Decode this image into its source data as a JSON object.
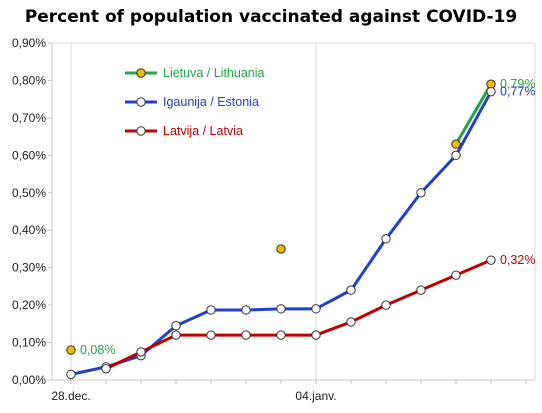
{
  "chart_data": {
    "type": "line",
    "title": "Percent of population vaccinated against COVID-19",
    "xlabel": "",
    "ylabel": "",
    "ylim": [
      0,
      0.9
    ],
    "y_ticks": [
      "0,00%",
      "0,10%",
      "0,20%",
      "0,30%",
      "0,40%",
      "0,50%",
      "0,60%",
      "0,70%",
      "0,80%",
      "0,90%"
    ],
    "x_range": [
      0,
      14
    ],
    "x_tick_labels": [
      {
        "x": 0,
        "label": "28.dec."
      },
      {
        "x": 7,
        "label": "04.janv."
      }
    ],
    "grid": "vertical",
    "legend_position": "top-left",
    "series": [
      {
        "name": "Lietuva / Lithuania",
        "color": "#22a745",
        "marker_fill": "#f5b800",
        "points": [
          [
            0,
            0.08
          ],
          [
            6,
            0.35
          ],
          [
            11,
            0.63
          ],
          [
            12,
            0.79
          ]
        ],
        "line_segments": [
          [
            2,
            3
          ]
        ],
        "labels": [
          {
            "index": 0,
            "text": "0,08%"
          },
          {
            "index": 3,
            "text": "0,79%"
          }
        ]
      },
      {
        "name": "Igaunija / Estonia",
        "color": "#1f3fcf",
        "marker_fill": "#ffffff",
        "points": [
          [
            0,
            0.015
          ],
          [
            1,
            0.035
          ],
          [
            2,
            0.065
          ],
          [
            3,
            0.145
          ],
          [
            4,
            0.187
          ],
          [
            5,
            0.187
          ],
          [
            6,
            0.19
          ],
          [
            7,
            0.19
          ],
          [
            8,
            0.24
          ],
          [
            9,
            0.377
          ],
          [
            10,
            0.5
          ],
          [
            11,
            0.6
          ],
          [
            12,
            0.77
          ]
        ],
        "labels": [
          {
            "index": 12,
            "text": "0,77%"
          }
        ]
      },
      {
        "name": "Latvija / Latvia",
        "color": "#c00000",
        "marker_fill": "#ffffff",
        "points": [
          [
            1,
            0.03
          ],
          [
            2,
            0.075
          ],
          [
            3,
            0.12
          ],
          [
            4,
            0.12
          ],
          [
            5,
            0.12
          ],
          [
            6,
            0.12
          ],
          [
            7,
            0.12
          ],
          [
            8,
            0.155
          ],
          [
            9,
            0.2
          ],
          [
            10,
            0.24
          ],
          [
            11,
            0.28
          ],
          [
            12,
            0.32
          ]
        ],
        "labels": [
          {
            "index": 11,
            "text": "0,32%"
          }
        ]
      }
    ]
  }
}
